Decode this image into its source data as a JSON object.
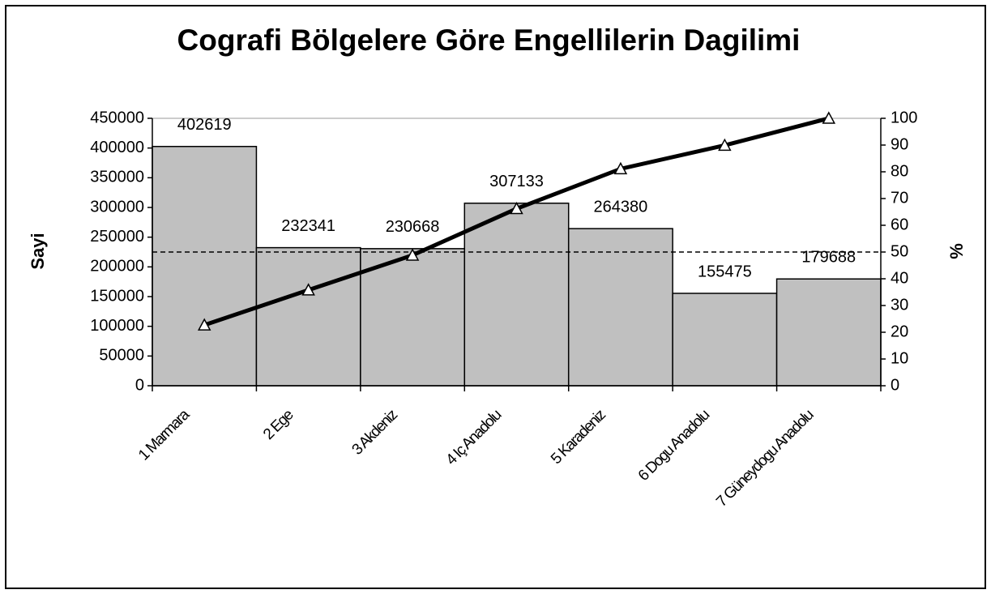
{
  "chart_data": {
    "type": "pareto",
    "title": "Cografi Bölgelere Göre Engellilerin Dagilimi",
    "y_label": "Sayi",
    "y2_label": "%",
    "categories": [
      "1 Marmara",
      "2 Ege",
      "3 Akdeniz",
      "4 Iç Anadolu",
      "5 Karadeniz",
      "6 Dogu Anadolu",
      "7 Güneydogu Anadolu"
    ],
    "series": [
      {
        "name": "Sayi",
        "type": "bar",
        "color": "#c0c0c0",
        "values": [
          402619,
          232341,
          230668,
          307133,
          264380,
          155475,
          179688
        ]
      },
      {
        "name": "%",
        "type": "line",
        "axis": "y2",
        "color": "#000000",
        "values": [
          22.7,
          35.8,
          48.8,
          66.2,
          81.1,
          89.9,
          100
        ]
      }
    ],
    "ylim": [
      0,
      450000
    ],
    "yticks": [
      0,
      50000,
      100000,
      150000,
      200000,
      250000,
      300000,
      350000,
      400000,
      450000
    ],
    "y2lim": [
      0,
      100
    ],
    "y2ticks": [
      0,
      10,
      20,
      30,
      40,
      50,
      60,
      70,
      80,
      90,
      100
    ],
    "y2_reference": 50
  }
}
